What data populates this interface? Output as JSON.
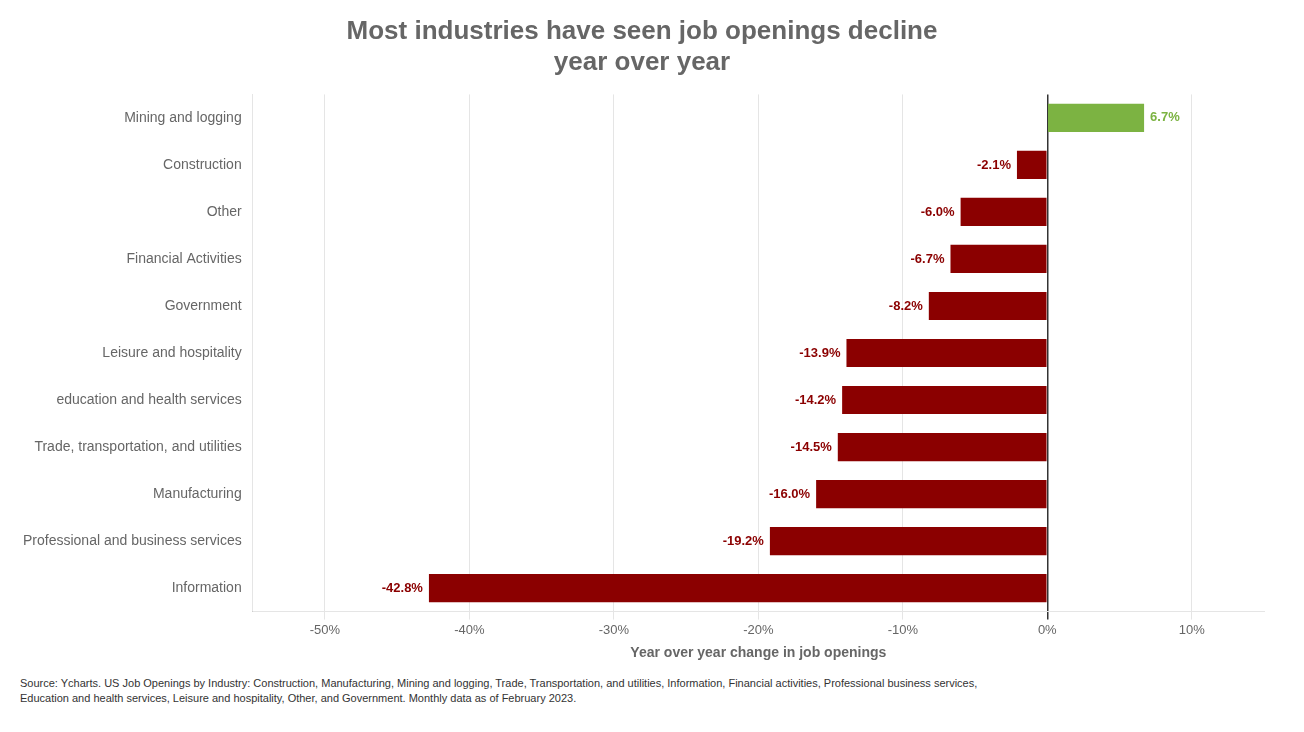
{
  "chart_data": {
    "type": "bar",
    "orientation": "horizontal",
    "title": "Most industries have seen job openings decline\nyear over year",
    "xlabel": "Year over year change in job openings",
    "annotations": [
      "Source: Ycharts. US Job Openings by Industry: Construction, Manufacturing, Mining and logging, Trade, Transportation, and utilities, Information, Financial activities, Professional business services,\nEducation and health services, Leisure and hospitality, Other, and Government. Monthly data as of February 2023."
    ],
    "categories": [
      "Information",
      "Professional and business services",
      "Manufacturing",
      "Trade, transportation, and utilities",
      "education and health services",
      "Leisure and hospitality",
      "Government",
      "Financial Activities",
      "Other",
      "Construction",
      "Mining and logging"
    ],
    "values": [
      -42.8,
      -19.2,
      -16.0,
      -14.5,
      -14.2,
      -13.9,
      -8.2,
      -6.7,
      -6.0,
      -2.1,
      6.7
    ],
    "value_labels": [
      "-42.8%",
      "-19.2%",
      "-16.0%",
      "-14.5%",
      "-14.2%",
      "-13.9%",
      "-8.2%",
      "-6.7%",
      "-6.0%",
      "-2.1%",
      "6.7%"
    ],
    "data_labels": true,
    "colors": [
      "#8B0000",
      "#8B0000",
      "#8B0000",
      "#8B0000",
      "#8B0000",
      "#8B0000",
      "#8B0000",
      "#8B0000",
      "#8B0000",
      "#8B0000",
      "#7CB342"
    ],
    "xlim": [
      -55,
      15
    ],
    "xticks": [
      {
        "value": -50,
        "label": "-50%"
      },
      {
        "value": -40,
        "label": "-40%"
      },
      {
        "value": -30,
        "label": "-30%"
      },
      {
        "value": -20,
        "label": "-20%"
      },
      {
        "value": -10,
        "label": "-10%"
      },
      {
        "value": 0,
        "label": "0%"
      },
      {
        "value": 10,
        "label": "10%"
      }
    ],
    "grid": true
  }
}
